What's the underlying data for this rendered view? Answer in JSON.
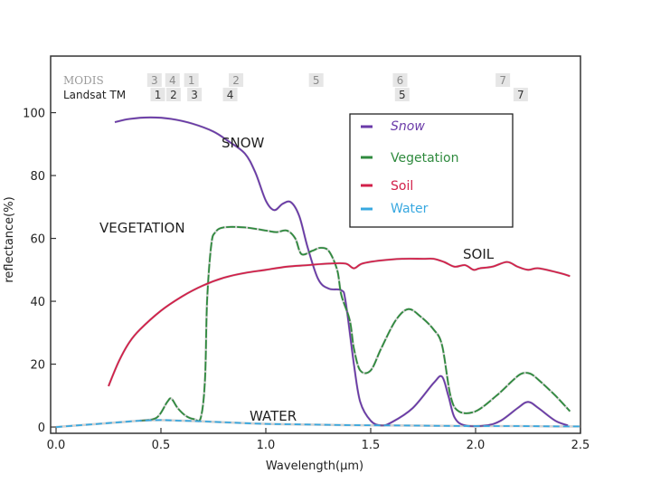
{
  "chart_data": {
    "type": "line",
    "xlabel": "Wavelength(µm)",
    "ylabel": "reflectance(%)",
    "xlim": [
      0,
      2.5
    ],
    "ylim": [
      -2,
      118
    ],
    "x_ticks": [
      0.0,
      0.5,
      1.0,
      1.5,
      2.0,
      2.5
    ],
    "x_tick_labels": [
      "0.0",
      "0.5",
      "1.0",
      "1.5",
      "2.0",
      "2.5"
    ],
    "y_ticks": [
      0,
      20,
      40,
      60,
      80,
      100
    ],
    "y_tick_labels": [
      "0",
      "20",
      "40",
      "60",
      "80",
      "100"
    ],
    "grid": false,
    "legend_position": "top-right",
    "legend": [
      {
        "label": "Snow",
        "color": "#6a3aa8"
      },
      {
        "label": "Vegetation",
        "color": "#2f8a3e"
      },
      {
        "label": "Soil",
        "color": "#d2204a"
      },
      {
        "label": "Water",
        "color": "#38a8e0"
      }
    ],
    "series": [
      {
        "name": "Snow",
        "label": "SNOW",
        "color": "#6a3aa8",
        "points": [
          [
            0.28,
            97
          ],
          [
            0.35,
            98
          ],
          [
            0.45,
            98.5
          ],
          [
            0.55,
            98
          ],
          [
            0.65,
            96.5
          ],
          [
            0.75,
            94
          ],
          [
            0.82,
            91
          ],
          [
            0.9,
            87
          ],
          [
            0.95,
            81
          ],
          [
            1.0,
            72
          ],
          [
            1.04,
            69
          ],
          [
            1.08,
            71
          ],
          [
            1.12,
            71.5
          ],
          [
            1.16,
            67
          ],
          [
            1.2,
            57
          ],
          [
            1.25,
            47
          ],
          [
            1.3,
            44
          ],
          [
            1.36,
            43.5
          ],
          [
            1.38,
            40
          ],
          [
            1.42,
            20
          ],
          [
            1.45,
            8
          ],
          [
            1.5,
            2
          ],
          [
            1.55,
            0.5
          ],
          [
            1.6,
            1.5
          ],
          [
            1.7,
            6
          ],
          [
            1.8,
            14
          ],
          [
            1.84,
            16
          ],
          [
            1.87,
            10
          ],
          [
            1.9,
            3
          ],
          [
            1.95,
            0.5
          ],
          [
            2.05,
            0.5
          ],
          [
            2.12,
            2
          ],
          [
            2.2,
            6
          ],
          [
            2.25,
            8
          ],
          [
            2.3,
            6
          ],
          [
            2.38,
            2
          ],
          [
            2.44,
            0.5
          ]
        ]
      },
      {
        "name": "Vegetation",
        "label": "VEGETATION",
        "color": "#2f8a3e",
        "points": [
          [
            0.4,
            2
          ],
          [
            0.48,
            3
          ],
          [
            0.53,
            8
          ],
          [
            0.55,
            9
          ],
          [
            0.58,
            6
          ],
          [
            0.62,
            3.5
          ],
          [
            0.66,
            2.5
          ],
          [
            0.69,
            3
          ],
          [
            0.71,
            15
          ],
          [
            0.72,
            40
          ],
          [
            0.74,
            58
          ],
          [
            0.76,
            62
          ],
          [
            0.8,
            63.5
          ],
          [
            0.9,
            63.5
          ],
          [
            1.0,
            62.5
          ],
          [
            1.05,
            62
          ],
          [
            1.1,
            62.5
          ],
          [
            1.14,
            60
          ],
          [
            1.17,
            55
          ],
          [
            1.22,
            56
          ],
          [
            1.26,
            57
          ],
          [
            1.3,
            56
          ],
          [
            1.34,
            50
          ],
          [
            1.36,
            42
          ],
          [
            1.4,
            34
          ],
          [
            1.42,
            25
          ],
          [
            1.45,
            18
          ],
          [
            1.5,
            18
          ],
          [
            1.55,
            25
          ],
          [
            1.62,
            34
          ],
          [
            1.68,
            37.5
          ],
          [
            1.74,
            35
          ],
          [
            1.8,
            31
          ],
          [
            1.84,
            26
          ],
          [
            1.88,
            10
          ],
          [
            1.92,
            5
          ],
          [
            2.0,
            5
          ],
          [
            2.1,
            10
          ],
          [
            2.18,
            15
          ],
          [
            2.22,
            17
          ],
          [
            2.26,
            17
          ],
          [
            2.3,
            15
          ],
          [
            2.38,
            10
          ],
          [
            2.45,
            5
          ]
        ]
      },
      {
        "name": "Soil",
        "label": "SOIL",
        "color": "#d2204a",
        "points": [
          [
            0.25,
            13
          ],
          [
            0.3,
            21
          ],
          [
            0.35,
            27
          ],
          [
            0.4,
            31
          ],
          [
            0.5,
            37
          ],
          [
            0.6,
            41.5
          ],
          [
            0.7,
            45
          ],
          [
            0.8,
            47.5
          ],
          [
            0.9,
            49
          ],
          [
            1.0,
            50
          ],
          [
            1.1,
            51
          ],
          [
            1.2,
            51.5
          ],
          [
            1.3,
            52
          ],
          [
            1.38,
            52
          ],
          [
            1.42,
            50.5
          ],
          [
            1.46,
            52
          ],
          [
            1.55,
            53
          ],
          [
            1.65,
            53.5
          ],
          [
            1.75,
            53.5
          ],
          [
            1.8,
            53.5
          ],
          [
            1.85,
            52.5
          ],
          [
            1.9,
            51
          ],
          [
            1.95,
            51.5
          ],
          [
            1.99,
            50
          ],
          [
            2.02,
            50.5
          ],
          [
            2.08,
            51
          ],
          [
            2.15,
            52.5
          ],
          [
            2.2,
            51
          ],
          [
            2.25,
            50
          ],
          [
            2.3,
            50.5
          ],
          [
            2.4,
            49
          ],
          [
            2.45,
            48
          ]
        ]
      },
      {
        "name": "Water",
        "label": "WATER",
        "color": "#38a8e0",
        "points": [
          [
            0.0,
            0
          ],
          [
            0.1,
            0.5
          ],
          [
            0.2,
            1
          ],
          [
            0.3,
            1.5
          ],
          [
            0.4,
            2
          ],
          [
            0.5,
            2.2
          ],
          [
            0.6,
            2
          ],
          [
            0.7,
            1.8
          ],
          [
            0.8,
            1.5
          ],
          [
            1.0,
            1
          ],
          [
            1.2,
            0.8
          ],
          [
            1.4,
            0.6
          ],
          [
            1.6,
            0.5
          ],
          [
            1.8,
            0.4
          ],
          [
            2.0,
            0.3
          ],
          [
            2.2,
            0.3
          ],
          [
            2.4,
            0.2
          ],
          [
            2.5,
            0.2
          ]
        ]
      }
    ],
    "band_rows": [
      {
        "sensor": "MODIS",
        "bands": [
          {
            "label": "3",
            "x": 0.469
          },
          {
            "label": "4",
            "x": 0.555
          },
          {
            "label": "1",
            "x": 0.645
          },
          {
            "label": "2",
            "x": 0.858
          },
          {
            "label": "5",
            "x": 1.24
          },
          {
            "label": "6",
            "x": 1.64
          },
          {
            "label": "7",
            "x": 2.13
          }
        ]
      },
      {
        "sensor": "Landsat TM",
        "bands": [
          {
            "label": "1",
            "x": 0.485
          },
          {
            "label": "2",
            "x": 0.56
          },
          {
            "label": "3",
            "x": 0.66
          },
          {
            "label": "4",
            "x": 0.83
          },
          {
            "label": "5",
            "x": 1.65
          },
          {
            "label": "7",
            "x": 2.215
          }
        ]
      }
    ]
  }
}
